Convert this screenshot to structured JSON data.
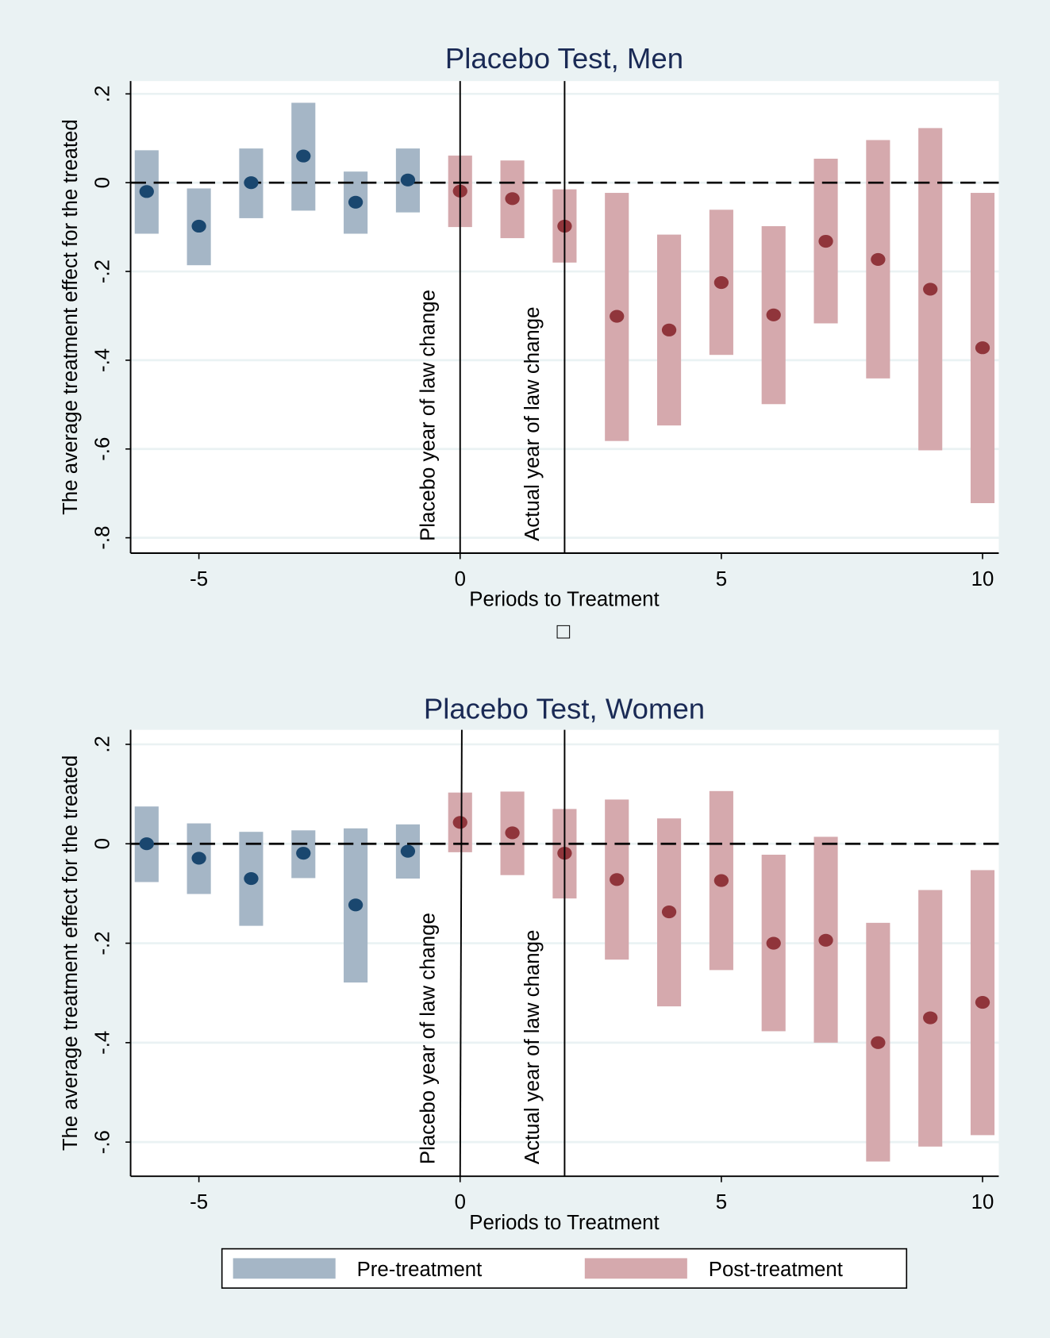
{
  "colors": {
    "background": "#eaf2f3",
    "pre_bar": "#a5b6c6",
    "pre_dot": "#1a476f",
    "post_bar": "#d5a9ad",
    "post_dot": "#90353b",
    "title": "#1a2a55"
  },
  "legend": {
    "position": "bottom",
    "items": [
      "Pre-treatment",
      "Post-treatment"
    ]
  },
  "chart_data": [
    {
      "type": "scatter",
      "title": "Placebo Test, Men",
      "xlabel": "Periods to Treatment",
      "ylabel": "The average treatment effect for the treated",
      "ylim": [
        -0.8,
        0.2
      ],
      "yticks": [
        0.2,
        0,
        -0.2,
        -0.4,
        -0.6,
        -0.8
      ],
      "ytick_labels": [
        ".2",
        "0",
        "-.2",
        "-.4",
        "-.6",
        "-.8"
      ],
      "xticks": [
        -5,
        0,
        5,
        10
      ],
      "xtick_labels": [
        "-5",
        "0",
        "5",
        "10"
      ],
      "grid": true,
      "reference_line_y": 0,
      "vlines": [
        {
          "x": 0,
          "label": "Placebo year of law change"
        },
        {
          "x": 2,
          "label": "Actual year of law change"
        }
      ],
      "x": [
        -6,
        -5,
        -4,
        -3,
        -2,
        -1,
        0,
        1,
        2,
        3,
        4,
        5,
        6,
        7,
        8,
        9,
        10
      ],
      "estimate": [
        -0.02,
        -0.098,
        0,
        0.06,
        -0.044,
        0.006,
        -0.019,
        -0.036,
        -0.098,
        -0.301,
        -0.332,
        -0.225,
        -0.298,
        -0.132,
        -0.173,
        -0.24,
        -0.372
      ],
      "ci_low": [
        -0.115,
        -0.186,
        -0.08,
        -0.063,
        -0.115,
        -0.067,
        -0.1,
        -0.125,
        -0.18,
        -0.582,
        -0.547,
        -0.388,
        -0.499,
        -0.317,
        -0.441,
        -0.603,
        -0.722
      ],
      "ci_high": [
        0.073,
        -0.013,
        0.077,
        0.18,
        0.025,
        0.077,
        0.061,
        0.05,
        -0.015,
        -0.023,
        -0.117,
        -0.061,
        -0.098,
        0.054,
        0.096,
        0.123,
        -0.023
      ],
      "note": "□"
    },
    {
      "type": "scatter",
      "title": "Placebo Test, Women",
      "xlabel": "Periods to Treatment",
      "ylabel": "The average treatment effect for the treated",
      "ylim": [
        -0.6,
        0.2
      ],
      "yticks": [
        0.2,
        0,
        -0.2,
        -0.4,
        -0.6
      ],
      "ytick_labels": [
        ".2",
        "0",
        "-.2",
        "-.4",
        "-.6"
      ],
      "xticks": [
        -5,
        0,
        5,
        10
      ],
      "xtick_labels": [
        "-5",
        "0",
        "5",
        "10"
      ],
      "grid": true,
      "reference_line_y": 0,
      "vlines": [
        {
          "x": 0,
          "label": "Placebo year of law change"
        },
        {
          "x": 2,
          "label": "Actual year of law change"
        }
      ],
      "x": [
        -6,
        -5,
        -4,
        -3,
        -2,
        -1,
        0,
        1,
        2,
        3,
        4,
        5,
        6,
        7,
        8,
        9,
        10
      ],
      "estimate": [
        0,
        -0.029,
        -0.07,
        -0.019,
        -0.123,
        -0.015,
        0.043,
        0.022,
        -0.019,
        -0.072,
        -0.137,
        -0.074,
        -0.2,
        -0.194,
        -0.4,
        -0.35,
        -0.319
      ],
      "ci_low": [
        -0.077,
        -0.101,
        -0.165,
        -0.069,
        -0.279,
        -0.07,
        -0.017,
        -0.063,
        -0.11,
        -0.233,
        -0.327,
        -0.254,
        -0.377,
        -0.4,
        -0.639,
        -0.609,
        -0.586
      ],
      "ci_high": [
        0.075,
        0.041,
        0.024,
        0.027,
        0.031,
        0.039,
        0.103,
        0.105,
        0.07,
        0.089,
        0.051,
        0.106,
        -0.022,
        0.014,
        -0.159,
        -0.093,
        -0.053
      ]
    }
  ]
}
